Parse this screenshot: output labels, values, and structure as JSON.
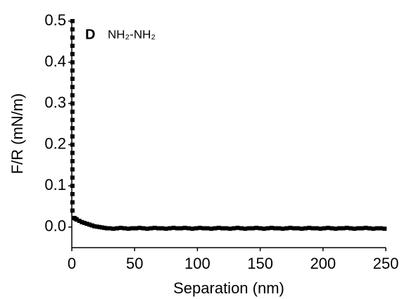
{
  "chart_data": {
    "type": "scatter",
    "x_label": "Separation (nm)",
    "y_label": "F/R (mN/m)",
    "annotations": [
      "D",
      "NH₂-NH₂"
    ],
    "x": [
      0.5,
      0.5,
      0.5,
      0.5,
      0.5,
      0.5,
      0.5,
      0.5,
      0.5,
      0.5,
      0.5,
      0.5,
      0.5,
      0.5,
      0.5,
      0.5,
      0.5,
      0.5,
      0.5,
      0.5,
      0.5,
      0.5,
      0.5,
      0.5,
      2,
      3,
      4,
      6,
      8,
      10,
      12,
      14,
      16,
      18,
      20,
      22,
      24,
      26,
      28,
      30,
      33,
      36,
      39,
      42,
      45,
      48,
      51,
      54,
      57,
      60,
      63,
      66,
      69,
      72,
      75,
      78,
      81,
      84,
      87,
      90,
      93,
      96,
      99,
      102,
      105,
      108,
      111,
      114,
      117,
      120,
      123,
      126,
      129,
      132,
      135,
      138,
      141,
      144,
      147,
      150,
      153,
      156,
      159,
      162,
      165,
      168,
      171,
      174,
      177,
      180,
      183,
      186,
      189,
      192,
      195,
      198,
      201,
      204,
      207,
      210,
      213,
      216,
      219,
      222,
      225,
      228,
      231,
      234,
      237,
      240,
      243,
      246,
      249
    ],
    "series": [
      {
        "color": "#000000",
        "marker": "square",
        "values": [
          0.5,
          0.48,
          0.46,
          0.44,
          0.42,
          0.4,
          0.38,
          0.36,
          0.34,
          0.32,
          0.3,
          0.28,
          0.26,
          0.24,
          0.22,
          0.2,
          0.18,
          0.16,
          0.14,
          0.12,
          0.1,
          0.08,
          0.06,
          0.04,
          0.022,
          0.02,
          0.018,
          0.015,
          0.012,
          0.01,
          0.008,
          0.006,
          0.004,
          0.002,
          0.001,
          0,
          -0.001,
          -0.002,
          -0.003,
          -0.003,
          -0.004,
          -0.003,
          -0.002,
          -0.003,
          -0.004,
          -0.003,
          -0.003,
          -0.002,
          -0.003,
          -0.004,
          -0.003,
          -0.002,
          -0.003,
          -0.003,
          -0.004,
          -0.003,
          -0.002,
          -0.003,
          -0.003,
          -0.002,
          -0.003,
          -0.004,
          -0.003,
          -0.002,
          -0.003,
          -0.003,
          -0.004,
          -0.003,
          -0.002,
          -0.003,
          -0.003,
          -0.004,
          -0.003,
          -0.002,
          -0.003,
          -0.004,
          -0.003,
          -0.003,
          -0.002,
          -0.003,
          -0.004,
          -0.003,
          -0.002,
          -0.003,
          -0.003,
          -0.004,
          -0.003,
          -0.002,
          -0.003,
          -0.003,
          -0.004,
          -0.003,
          -0.002,
          -0.003,
          -0.003,
          -0.004,
          -0.003,
          -0.002,
          -0.003,
          -0.004,
          -0.003,
          -0.003,
          -0.002,
          -0.003,
          -0.004,
          -0.003,
          -0.003,
          -0.002,
          -0.003,
          -0.004,
          -0.003,
          -0.003,
          -0.004
        ]
      }
    ],
    "xlim": [
      0,
      250
    ],
    "xticks": [
      0,
      50,
      100,
      150,
      200,
      250
    ],
    "ylim": [
      -0.05,
      0.5
    ],
    "yticks": [
      {
        "value": 0,
        "label": "0.0"
      },
      0.1,
      0.2,
      0.3,
      0.4,
      0.5
    ]
  }
}
